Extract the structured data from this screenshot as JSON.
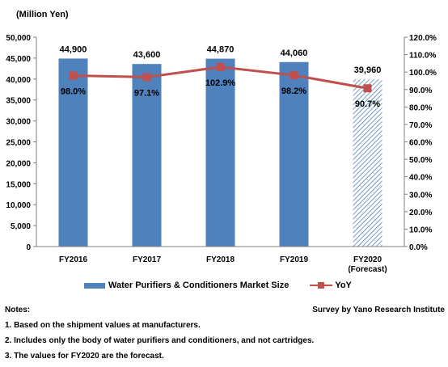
{
  "chart_data": {
    "type": "bar",
    "y_unit_label": "(Million Yen)",
    "categories": [
      "FY2016",
      "FY2017",
      "FY2018",
      "FY2019",
      "FY2020\n(Forecast)"
    ],
    "series": [
      {
        "name": "Water Purifiers & Conditioners Market Size",
        "type": "bar",
        "axis": "left",
        "values": [
          44900,
          43600,
          44870,
          44060,
          39960
        ],
        "labels": [
          "44,900",
          "43,600",
          "44,870",
          "44,060",
          "39,960"
        ],
        "forecast": [
          false,
          false,
          false,
          false,
          true
        ],
        "color": "#4f81bd"
      },
      {
        "name": "YoY",
        "type": "line",
        "axis": "right",
        "values": [
          98.0,
          97.1,
          102.9,
          98.2,
          90.7
        ],
        "labels": [
          "98.0%",
          "97.1%",
          "102.9%",
          "98.2%",
          "90.7%"
        ],
        "color": "#c0504d"
      }
    ],
    "y_left": {
      "lim": [
        0,
        50000
      ],
      "ticks": [
        "0",
        "5,000",
        "10,000",
        "15,000",
        "20,000",
        "25,000",
        "30,000",
        "35,000",
        "40,000",
        "45,000",
        "50,000"
      ]
    },
    "y_right": {
      "lim": [
        0,
        120
      ],
      "ticks": [
        "0.0%",
        "10.0%",
        "20.0%",
        "30.0%",
        "40.0%",
        "50.0%",
        "60.0%",
        "70.0%",
        "80.0%",
        "90.0%",
        "100.0%",
        "110.0%",
        "120.0%"
      ]
    },
    "grid": false,
    "legend_position": "bottom"
  },
  "notes": {
    "title": "Notes:",
    "source": "Survey by Yano Research Institute",
    "items": [
      "1. Based on the shipment values at manufacturers.",
      "2. Includes only the body of water purifiers and conditioners, and not cartridges.",
      "3. The values for FY2020 are the forecast."
    ]
  }
}
